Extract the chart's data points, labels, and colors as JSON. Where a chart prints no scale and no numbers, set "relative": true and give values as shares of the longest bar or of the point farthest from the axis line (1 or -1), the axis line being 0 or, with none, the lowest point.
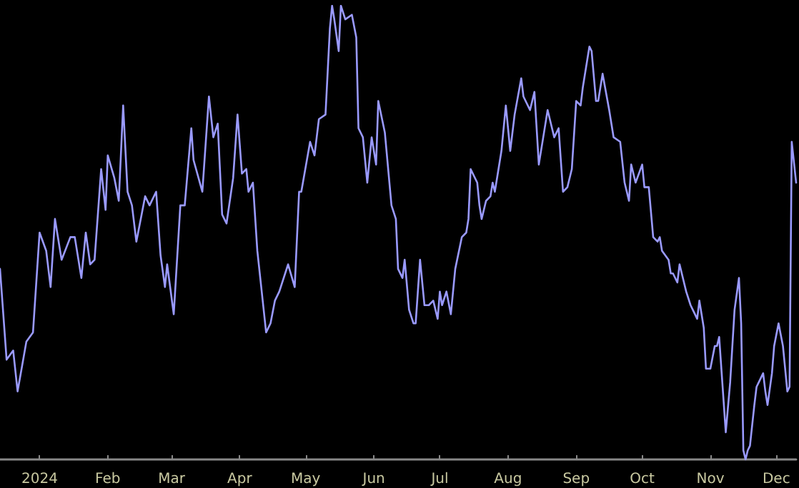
{
  "chart_data": {
    "type": "line",
    "relative": true,
    "grid": false,
    "marker": "none",
    "line_style": "solid",
    "xlim": [
      "2023-12-14",
      "2024-12-10"
    ],
    "xticks": [
      {
        "value": "2024-01-01",
        "label": "2024"
      },
      {
        "value": "2024-02-01",
        "label": "Feb"
      },
      {
        "value": "2024-03-01",
        "label": "Mar"
      },
      {
        "value": "2024-04-01",
        "label": "Apr"
      },
      {
        "value": "2024-05-01",
        "label": "May"
      },
      {
        "value": "2024-06-01",
        "label": "Jun"
      },
      {
        "value": "2024-07-01",
        "label": "Jul"
      },
      {
        "value": "2024-08-01",
        "label": "Aug"
      },
      {
        "value": "2024-09-01",
        "label": "Sep"
      },
      {
        "value": "2024-10-01",
        "label": "Oct"
      },
      {
        "value": "2024-11-01",
        "label": "Nov"
      },
      {
        "value": "2024-12-01",
        "label": "Dec"
      }
    ],
    "x": [
      "2023-12-14",
      "2023-12-17",
      "2023-12-20",
      "2023-12-22",
      "2023-12-26",
      "2023-12-29",
      "2024-01-01",
      "2024-01-04",
      "2024-01-06",
      "2024-01-08",
      "2024-01-11",
      "2024-01-15",
      "2024-01-17",
      "2024-01-20",
      "2024-01-22",
      "2024-01-24",
      "2024-01-26",
      "2024-01-29",
      "2024-01-31",
      "2024-02-01",
      "2024-02-04",
      "2024-02-06",
      "2024-02-08",
      "2024-02-10",
      "2024-02-12",
      "2024-02-14",
      "2024-02-16",
      "2024-02-18",
      "2024-02-20",
      "2024-02-23",
      "2024-02-25",
      "2024-02-27",
      "2024-02-28",
      "2024-03-02",
      "2024-03-05",
      "2024-03-07",
      "2024-03-10",
      "2024-03-11",
      "2024-03-15",
      "2024-03-18",
      "2024-03-20",
      "2024-03-22",
      "2024-03-24",
      "2024-03-26",
      "2024-03-29",
      "2024-03-31",
      "2024-04-02",
      "2024-04-04",
      "2024-04-05",
      "2024-04-07",
      "2024-04-09",
      "2024-04-13",
      "2024-04-15",
      "2024-04-17",
      "2024-04-19",
      "2024-04-23",
      "2024-04-26",
      "2024-04-28",
      "2024-04-29",
      "2024-05-03",
      "2024-05-05",
      "2024-05-07",
      "2024-05-10",
      "2024-05-12",
      "2024-05-13",
      "2024-05-14",
      "2024-05-16",
      "2024-05-17",
      "2024-05-19",
      "2024-05-22",
      "2024-05-24",
      "2024-05-25",
      "2024-05-27",
      "2024-05-29",
      "2024-05-31",
      "2024-06-02",
      "2024-06-03",
      "2024-06-06",
      "2024-06-09",
      "2024-06-11",
      "2024-06-12",
      "2024-06-14",
      "2024-06-15",
      "2024-06-17",
      "2024-06-19",
      "2024-06-20",
      "2024-06-22",
      "2024-06-24",
      "2024-06-26",
      "2024-06-28",
      "2024-06-30",
      "2024-07-01",
      "2024-07-02",
      "2024-07-04",
      "2024-07-06",
      "2024-07-08",
      "2024-07-11",
      "2024-07-13",
      "2024-07-14",
      "2024-07-15",
      "2024-07-18",
      "2024-07-19",
      "2024-07-20",
      "2024-07-22",
      "2024-07-24",
      "2024-07-25",
      "2024-07-26",
      "2024-07-29",
      "2024-07-31",
      "2024-08-02",
      "2024-08-04",
      "2024-08-07",
      "2024-08-08",
      "2024-08-11",
      "2024-08-13",
      "2024-08-15",
      "2024-08-19",
      "2024-08-22",
      "2024-08-24",
      "2024-08-26",
      "2024-08-28",
      "2024-08-30",
      "2024-09-01",
      "2024-09-03",
      "2024-09-04",
      "2024-09-07",
      "2024-09-08",
      "2024-09-10",
      "2024-09-11",
      "2024-09-13",
      "2024-09-16",
      "2024-09-18",
      "2024-09-21",
      "2024-09-23",
      "2024-09-25",
      "2024-09-26",
      "2024-09-28",
      "2024-10-01",
      "2024-10-02",
      "2024-10-04",
      "2024-10-06",
      "2024-10-08",
      "2024-10-09",
      "2024-10-10",
      "2024-10-13",
      "2024-10-14",
      "2024-10-15",
      "2024-10-17",
      "2024-10-18",
      "2024-10-19",
      "2024-10-21",
      "2024-10-23",
      "2024-10-24",
      "2024-10-26",
      "2024-10-27",
      "2024-10-29",
      "2024-10-30",
      "2024-11-01",
      "2024-11-03",
      "2024-11-04",
      "2024-11-05",
      "2024-11-06",
      "2024-11-08",
      "2024-11-10",
      "2024-11-12",
      "2024-11-14",
      "2024-11-15",
      "2024-11-16",
      "2024-11-17",
      "2024-11-18",
      "2024-11-19",
      "2024-11-21",
      "2024-11-22",
      "2024-11-23",
      "2024-11-25",
      "2024-11-26",
      "2024-11-27",
      "2024-11-29",
      "2024-11-30",
      "2024-12-02",
      "2024-12-04",
      "2024-12-06",
      "2024-12-07",
      "2024-12-08",
      "2024-12-10"
    ],
    "series": [
      {
        "color": "#9a9aff",
        "values": [
          0.42,
          0.22,
          0.24,
          0.15,
          0.26,
          0.28,
          0.5,
          0.46,
          0.38,
          0.53,
          0.44,
          0.49,
          0.49,
          0.4,
          0.5,
          0.43,
          0.44,
          0.64,
          0.55,
          0.67,
          0.62,
          0.57,
          0.78,
          0.59,
          0.56,
          0.48,
          0.53,
          0.58,
          0.56,
          0.59,
          0.45,
          0.38,
          0.43,
          0.32,
          0.56,
          0.56,
          0.73,
          0.66,
          0.59,
          0.8,
          0.71,
          0.74,
          0.54,
          0.52,
          0.62,
          0.76,
          0.63,
          0.64,
          0.59,
          0.61,
          0.46,
          0.28,
          0.3,
          0.35,
          0.37,
          0.43,
          0.38,
          0.59,
          0.59,
          0.7,
          0.67,
          0.75,
          0.76,
          0.95,
          1.0,
          0.97,
          0.9,
          1.0,
          0.97,
          0.98,
          0.93,
          0.73,
          0.71,
          0.61,
          0.71,
          0.65,
          0.79,
          0.72,
          0.56,
          0.53,
          0.42,
          0.4,
          0.44,
          0.33,
          0.3,
          0.3,
          0.44,
          0.34,
          0.34,
          0.35,
          0.31,
          0.37,
          0.34,
          0.37,
          0.32,
          0.42,
          0.49,
          0.5,
          0.53,
          0.64,
          0.61,
          0.56,
          0.53,
          0.57,
          0.58,
          0.61,
          0.59,
          0.68,
          0.78,
          0.68,
          0.76,
          0.84,
          0.8,
          0.77,
          0.81,
          0.65,
          0.77,
          0.71,
          0.73,
          0.59,
          0.6,
          0.64,
          0.79,
          0.78,
          0.82,
          0.91,
          0.9,
          0.79,
          0.79,
          0.85,
          0.77,
          0.71,
          0.7,
          0.61,
          0.57,
          0.65,
          0.61,
          0.65,
          0.6,
          0.6,
          0.49,
          0.48,
          0.49,
          0.46,
          0.44,
          0.41,
          0.41,
          0.39,
          0.43,
          0.41,
          0.37,
          0.34,
          0.33,
          0.31,
          0.35,
          0.29,
          0.2,
          0.2,
          0.25,
          0.25,
          0.27,
          0.2,
          0.06,
          0.17,
          0.33,
          0.4,
          0.3,
          0.02,
          0,
          0.02,
          0.03,
          0.12,
          0.16,
          0.17,
          0.19,
          0.15,
          0.12,
          0.19,
          0.25,
          0.3,
          0.25,
          0.15,
          0.16,
          0.7,
          0.61
        ]
      }
    ]
  }
}
